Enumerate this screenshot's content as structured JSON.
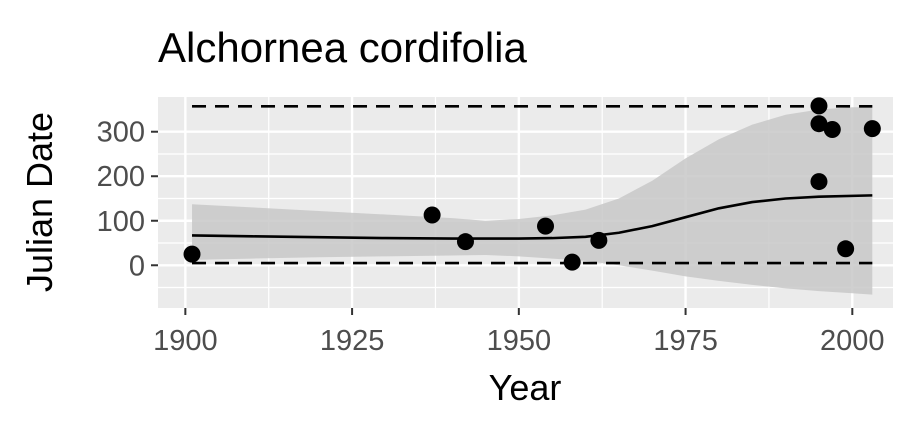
{
  "chart_data": {
    "type": "scatter",
    "title": "Alchornea cordifolia",
    "xlabel": "Year",
    "ylabel": "Julian Date",
    "xlim": [
      1895.9,
      2006.1
    ],
    "ylim": [
      -96,
      378
    ],
    "x_ticks": [
      1900,
      1925,
      1950,
      1975,
      2000
    ],
    "y_ticks": [
      0,
      100,
      200,
      300
    ],
    "grid": true,
    "legend": "none",
    "colors": {
      "panel": "#ebebeb",
      "grid": "#ffffff",
      "points": "#000000",
      "ribbon": "#c8c8c8",
      "tick_text": "#4d4d4d"
    },
    "points": [
      {
        "x": 1901,
        "y": 25
      },
      {
        "x": 1937,
        "y": 113
      },
      {
        "x": 1942,
        "y": 53
      },
      {
        "x": 1954,
        "y": 88
      },
      {
        "x": 1958,
        "y": 7
      },
      {
        "x": 1962,
        "y": 56
      },
      {
        "x": 1995,
        "y": 358
      },
      {
        "x": 1995,
        "y": 318
      },
      {
        "x": 1995,
        "y": 188
      },
      {
        "x": 1997,
        "y": 305
      },
      {
        "x": 1999,
        "y": 37
      },
      {
        "x": 2003,
        "y": 307
      }
    ],
    "fit_line": {
      "x": [
        1901,
        1910,
        1920,
        1930,
        1940,
        1950,
        1955,
        1960,
        1965,
        1970,
        1975,
        1980,
        1985,
        1990,
        1995,
        2003
      ],
      "y": [
        67,
        65,
        63,
        61,
        60,
        60,
        61,
        64,
        73,
        88,
        108,
        128,
        142,
        150,
        154,
        157
      ]
    },
    "confidence_band": {
      "x": [
        1901,
        1910,
        1920,
        1930,
        1940,
        1945,
        1950,
        1955,
        1960,
        1965,
        1970,
        1975,
        1980,
        1985,
        1990,
        1995,
        2000,
        2003
      ],
      "upper": [
        137,
        130,
        122,
        114,
        106,
        100,
        104,
        112,
        125,
        150,
        190,
        240,
        283,
        316,
        338,
        350,
        355,
        355
      ],
      "lower": [
        12,
        15,
        18,
        20,
        22,
        23,
        20,
        15,
        10,
        0,
        -12,
        -25,
        -35,
        -44,
        -52,
        -58,
        -63,
        -66
      ]
    },
    "dashed_bounds": {
      "x": [
        1901,
        2003
      ],
      "upper": 357,
      "lower": 5
    }
  }
}
